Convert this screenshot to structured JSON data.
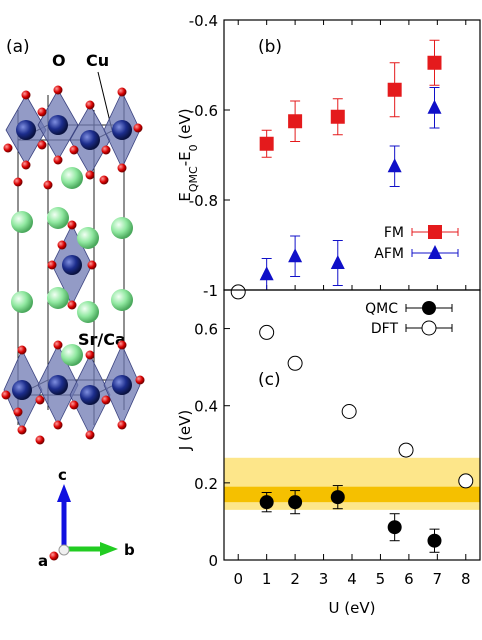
{
  "panel_a": {
    "label": "(a)",
    "atom_labels": {
      "o": "O",
      "cu": "Cu",
      "srca": "Sr/Ca"
    },
    "axes": {
      "c": "c",
      "a": "a",
      "b": "b"
    },
    "colors": {
      "cu": "#1c2d8c",
      "o": "#d80000",
      "srca": "#90e8a0",
      "octahedra": "#6f79b3"
    }
  },
  "chart_data": [
    {
      "type": "scatter",
      "panel_label": "(b)",
      "ylabel_main": "E",
      "ylabel_sub1": "QMC",
      "ylabel_mid": "-E",
      "ylabel_sub2": "0",
      "ylabel_unit": " (eV)",
      "xlim": [
        -0.5,
        8.5
      ],
      "ylim": [
        -1.0,
        -0.4
      ],
      "y_ticks": [
        -1.0,
        -0.8,
        -0.6,
        -0.4
      ],
      "y_tick_labels": [
        "-1",
        "-0.8",
        "-0.6",
        "-0.4"
      ],
      "legend_position": "lower-right",
      "series": [
        {
          "name": "FM",
          "marker": "square",
          "color": "#e41a1c",
          "points": [
            {
              "x": 1,
              "y": -0.675,
              "err": 0.03
            },
            {
              "x": 2,
              "y": -0.625,
              "err": 0.045
            },
            {
              "x": 3.5,
              "y": -0.615,
              "err": 0.04
            },
            {
              "x": 5.5,
              "y": -0.555,
              "err": 0.06
            },
            {
              "x": 6.9,
              "y": -0.495,
              "err": 0.05
            }
          ]
        },
        {
          "name": "AFM",
          "marker": "triangle",
          "color": "#1010c8",
          "points": [
            {
              "x": 1,
              "y": -0.965,
              "err": 0.035
            },
            {
              "x": 2,
              "y": -0.925,
              "err": 0.045
            },
            {
              "x": 3.5,
              "y": -0.94,
              "err": 0.05
            },
            {
              "x": 5.5,
              "y": -0.725,
              "err": 0.045
            },
            {
              "x": 6.9,
              "y": -0.595,
              "err": 0.045
            }
          ]
        }
      ]
    },
    {
      "type": "scatter",
      "panel_label": "(c)",
      "xlabel": "U (eV)",
      "ylabel": "J (eV)",
      "xlim": [
        -0.5,
        8.5
      ],
      "ylim": [
        0,
        0.7
      ],
      "x_ticks": [
        0,
        1,
        2,
        3,
        4,
        5,
        6,
        7,
        8
      ],
      "x_tick_labels": [
        "0",
        "1",
        "2",
        "3",
        "4",
        "5",
        "6",
        "7",
        "8"
      ],
      "y_ticks": [
        0,
        0.2,
        0.4,
        0.6
      ],
      "y_tick_labels": [
        "0",
        "0.2",
        "0.4",
        "0.6"
      ],
      "legend_position": "top-right",
      "bands": [
        {
          "y0": 0.13,
          "y1": 0.265,
          "color": "#fde68a"
        },
        {
          "y0": 0.15,
          "y1": 0.19,
          "color": "#f5c000"
        }
      ],
      "series": [
        {
          "name": "QMC",
          "marker": "filled-circle",
          "color": "#000000",
          "points": [
            {
              "x": 1,
              "y": 0.15,
              "err": 0.025
            },
            {
              "x": 2,
              "y": 0.15,
              "err": 0.03
            },
            {
              "x": 3.5,
              "y": 0.163,
              "err": 0.03
            },
            {
              "x": 5.5,
              "y": 0.085,
              "err": 0.035
            },
            {
              "x": 6.9,
              "y": 0.05,
              "err": 0.03
            }
          ]
        },
        {
          "name": "DFT",
          "marker": "open-circle",
          "color": "#000000",
          "points": [
            {
              "x": 0,
              "y": 0.695
            },
            {
              "x": 1,
              "y": 0.59
            },
            {
              "x": 2,
              "y": 0.51
            },
            {
              "x": 3.9,
              "y": 0.385
            },
            {
              "x": 5.9,
              "y": 0.285
            },
            {
              "x": 8,
              "y": 0.205
            }
          ]
        }
      ]
    }
  ]
}
